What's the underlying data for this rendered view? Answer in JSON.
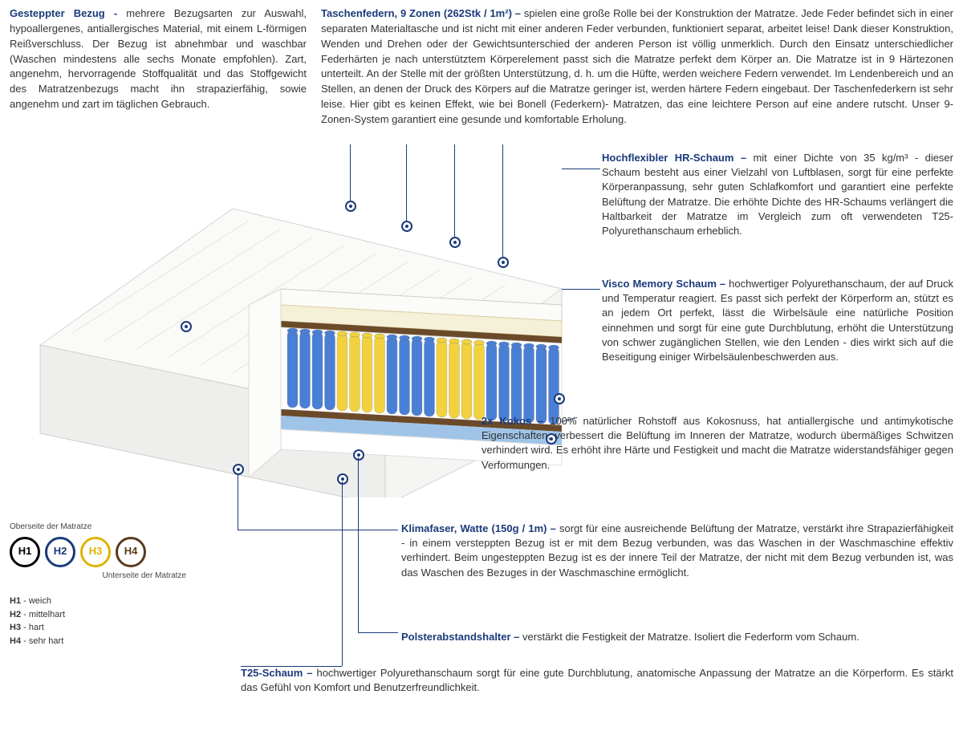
{
  "colors": {
    "title": "#1a3a7a",
    "text": "#333333",
    "h1": "#000000",
    "h2": "#1a3a7a",
    "h3": "#e0b300",
    "h4": "#5a3a1a"
  },
  "top": {
    "left_title": "Gesteppter Bezug - ",
    "left_text": "mehrere Bezugsarten zur Auswahl, hypoallergenes, antiallergisches Material, mit einem L-förmigen Reißverschluss. Der Bezug ist abnehmbar und waschbar (Waschen mindestens alle sechs Monate empfohlen). Zart, angenehm, hervorragende Stoffqualität und das Stoffgewicht des Matratzenbezugs macht ihn strapazierfähig, sowie angenehm und zart im täglichen Gebrauch.",
    "right_title": "Taschenfedern, 9 Zonen (262Stk / 1m²) – ",
    "right_text": "spielen eine große Rolle bei der Konstruktion der Matratze. Jede Feder befindet sich in einer separaten Materialtasche und ist nicht mit einer anderen Feder verbunden, funktioniert separat, arbeitet leise! Dank dieser Konstruktion, Wenden und Drehen oder der Gewichtsunterschied der anderen Person ist völlig unmerklich. Durch den Einsatz unterschiedlicher Federhärten je nach unterstütztem Körperelement passt sich die Matratze perfekt dem Körper an. Die Matratze ist in 9 Härtezonen unterteilt. An der Stelle mit der größten Unterstützung, d. h. um die Hüfte, werden weichere Federn verwendet. Im Lendenbereich und an Stellen, an denen der Druck des Körpers auf die Matratze geringer ist, werden härtere Federn eingebaut. Der Taschenfederkern ist sehr leise. Hier gibt es keinen Effekt, wie bei Bonell (Federkern)- Matratzen, das eine leichtere Person auf eine andere rutscht. Unser 9-Zonen-System garantiert eine gesunde und komfortable Erholung."
  },
  "sections": {
    "hr": {
      "title": "Hochflexibler HR-Schaum – ",
      "text": "mit einer Dichte von 35 kg/m³ - dieser Schaum besteht aus einer Vielzahl von Luftblasen, sorgt für eine perfekte Körperanpassung, sehr guten Schlafkomfort und garantiert eine perfekte Belüftung der Matratze. Die erhöhte Dichte des HR-Schaums verlängert die Haltbarkeit der Matratze im Vergleich zum oft verwendeten T25-Polyurethanschaum erheblich."
    },
    "visco": {
      "title": "Visco Memory Schaum – ",
      "text": "hochwertiger Polyurethanschaum, der auf Druck und Temperatur reagiert. Es passt sich perfekt der Körperform an, stützt es an jedem Ort perfekt, lässt die Wirbelsäule eine natürliche Position einnehmen und sorgt für eine gute Durchblutung, erhöht die Unterstützung von schwer zugänglichen Stellen, wie den Lenden - dies wirkt sich auf die Beseitigung einiger Wirbelsäulenbeschwerden aus."
    },
    "kokos": {
      "title": "2x Kokos – ",
      "text": "100% natürlicher Rohstoff aus Kokosnuss, hat antiallergische und antimykotische Eigenschaften, verbessert die Belüftung im Inneren der Matratze, wodurch übermäßiges Schwitzen verhindert wird. Es erhöht ihre Härte und Festigkeit und macht die Matratze widerstandsfähiger gegen Verformungen."
    },
    "klima": {
      "title": "Klimafaser, Watte (150g / 1m) – ",
      "text": "sorgt für eine ausreichende Belüftung der Matratze, verstärkt ihre Strapazierfähigkeit - in einem versteppten Bezug ist er mit dem Bezug verbunden, was das Waschen in der Waschmaschine effektiv verhindert. Beim ungesteppten Bezug ist es der innere Teil der Matratze, der nicht mit dem Bezug verbunden ist, was das Waschen des Bezuges in der Waschmaschine ermöglicht."
    },
    "polster": {
      "title": "Polsterabstandshalter – ",
      "text": "verstärkt die Festigkeit der Matratze. Isoliert die Federform vom Schaum."
    },
    "t25": {
      "title": "T25-Schaum – ",
      "text": "hochwertiger Polyurethanschaum sorgt für eine gute Durchblutung, anatomische Anpassung der Matratze an die Körperform. Es stärkt das Gefühl von Komfort und Benutzerfreundlichkeit."
    }
  },
  "legend": {
    "top_label": "Oberseite der Matratze",
    "bottom_label": "Unterseite der Matratze",
    "circles": [
      {
        "label": "H1",
        "color": "#000000"
      },
      {
        "label": "H2",
        "color": "#1a3a7a"
      },
      {
        "label": "H3",
        "color": "#e0b300"
      },
      {
        "label": "H4",
        "color": "#5a3a1a"
      }
    ],
    "items": [
      {
        "code": "H1",
        "desc": " - weich"
      },
      {
        "code": "H2",
        "desc": " - mittelhart"
      },
      {
        "code": "H3",
        "desc": " - hart"
      },
      {
        "code": "H4",
        "desc": " - sehr hart"
      }
    ]
  },
  "mattress": {
    "cover_color": "#f2f2f0",
    "foam_top_color": "#f5f0d8",
    "foam_mid_color": "#ffffff",
    "coco_color": "#6b4a2a",
    "spring_blue": "#4a7fd6",
    "spring_yellow": "#f1d23e",
    "base_blue": "#9fc4e8",
    "base_white": "#ffffff"
  }
}
